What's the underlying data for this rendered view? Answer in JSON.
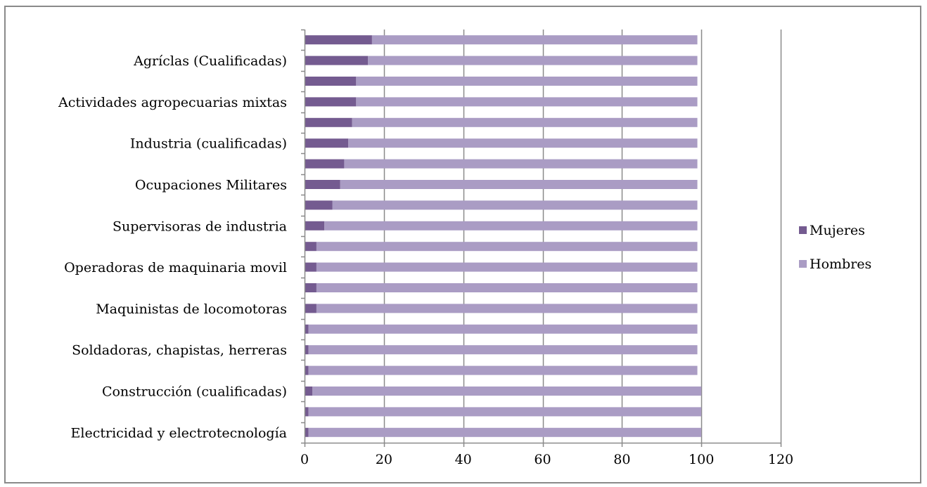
{
  "chart_data": {
    "type": "bar",
    "orientation": "horizontal",
    "stacked": true,
    "title": "",
    "xlabel": "",
    "ylabel": "",
    "xlim": [
      0,
      120
    ],
    "x_ticks": [
      0,
      20,
      40,
      60,
      80,
      100,
      120
    ],
    "grid": "vertical major gridlines",
    "legend_position": "right",
    "categories_top_to_bottom": [
      "",
      "Agríclas (Cualificadas)",
      "",
      "Actividades agropecuarias mixtas",
      "",
      "Industria (cualificadas)",
      "",
      "Ocupaciones Militares",
      "",
      "Supervisoras de industria",
      "",
      "Operadoras de maquinaria movil",
      "",
      "Maquinistas de locomotoras",
      "",
      "Soldadoras, chapistas, herreras",
      "",
      "Construcción (cualificadas)",
      "",
      "Electricidad y electrotecnología"
    ],
    "series": [
      {
        "name": "Mujeres",
        "color": "#745b90",
        "values": [
          17,
          16,
          13,
          13,
          12,
          11,
          10,
          9,
          7,
          5,
          3,
          3,
          3,
          3,
          1,
          1,
          1,
          2,
          1,
          1
        ]
      },
      {
        "name": "Hombres",
        "color": "#aa9cc4",
        "values": [
          82,
          83,
          86,
          86,
          87,
          88,
          89,
          90,
          92,
          94,
          96,
          96,
          96,
          96,
          98,
          98,
          98,
          98,
          99,
          99
        ]
      }
    ]
  }
}
